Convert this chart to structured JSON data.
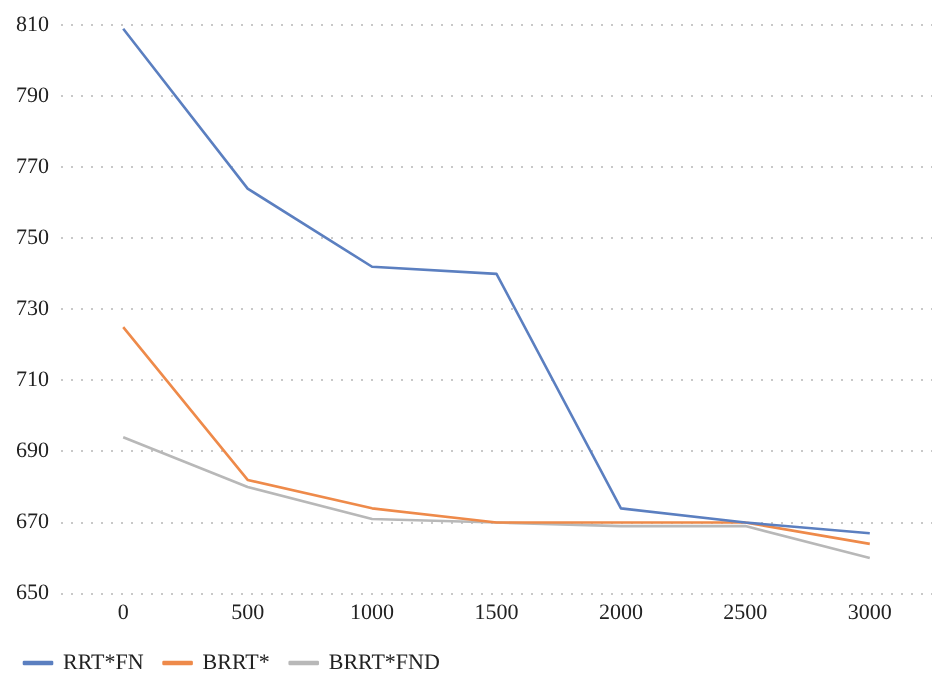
{
  "chart_data": {
    "type": "line",
    "categories": [
      "0",
      "500",
      "1000",
      "1500",
      "2000",
      "2500",
      "3000"
    ],
    "series": [
      {
        "name": "RRT*FN",
        "color": "#5b7fc0",
        "values": [
          809,
          764,
          742,
          740,
          674,
          670,
          667
        ]
      },
      {
        "name": "BRRT*",
        "color": "#ee8a4a",
        "values": [
          725,
          682,
          674,
          670,
          670,
          670,
          664
        ]
      },
      {
        "name": "BRRT*FND",
        "color": "#b8b8b8",
        "values": [
          694,
          680,
          671,
          670,
          669,
          669,
          660
        ]
      }
    ],
    "ylim": [
      650,
      810
    ],
    "yticks": [
      650,
      670,
      690,
      710,
      730,
      750,
      770,
      790,
      810
    ],
    "grid": "y",
    "legend": "bottom left",
    "marker": "none",
    "line_style": "solid"
  }
}
